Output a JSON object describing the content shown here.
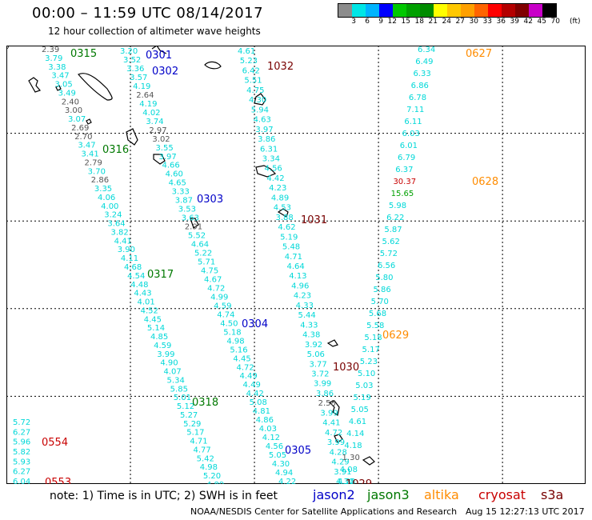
{
  "header": {
    "title": "00:00 – 11:59 UTC 08/14/2017",
    "subtitle": "12 hour collection of altimeter wave heights"
  },
  "colorbar": {
    "unit": "(ft)",
    "labels": [
      "3",
      "6",
      "9",
      "12",
      "15",
      "18",
      "21",
      "24",
      "27",
      "30",
      "33",
      "36",
      "39",
      "42",
      "45",
      "70"
    ],
    "colors": [
      "#8c8c8c",
      "#00e6e6",
      "#00b4ff",
      "#0000ff",
      "#00c800",
      "#00a000",
      "#008c00",
      "#ffff00",
      "#ffc800",
      "#ffa000",
      "#ff6400",
      "#ff0000",
      "#b40000",
      "#800000",
      "#c800c8",
      "#000000"
    ]
  },
  "map": {
    "y_ticks": [
      "10",
      "8",
      "6",
      "4",
      "2",
      "0"
    ],
    "x_ticks": [
      "165",
      "168",
      "171",
      "174",
      "177"
    ],
    "track_colors": {
      "jason2": "#0000c8",
      "jason3": "#007800",
      "altika": "#ff8c00",
      "cryosat": "#c80000",
      "s3a": "#780000"
    },
    "track_labels": [
      {
        "text": "0315",
        "mission": "jason3"
      },
      {
        "text": "0301",
        "mission": "jason2"
      },
      {
        "text": "0302",
        "mission": "jason2"
      },
      {
        "text": "1032",
        "mission": "s3a"
      },
      {
        "text": "0627",
        "mission": "altika"
      },
      {
        "text": "0316",
        "mission": "jason3"
      },
      {
        "text": "0628",
        "mission": "altika"
      },
      {
        "text": "0303",
        "mission": "jason2"
      },
      {
        "text": "1031",
        "mission": "s3a"
      },
      {
        "text": "0317",
        "mission": "jason3"
      },
      {
        "text": "0304",
        "mission": "jason2"
      },
      {
        "text": "0629",
        "mission": "altika"
      },
      {
        "text": "1030",
        "mission": "s3a"
      },
      {
        "text": "0318",
        "mission": "jason3"
      },
      {
        "text": "0305",
        "mission": "jason2"
      },
      {
        "text": "0554",
        "mission": "cryosat"
      },
      {
        "text": "1029",
        "mission": "s3a"
      },
      {
        "text": "0553",
        "mission": "cryosat"
      }
    ],
    "tracks": [
      {
        "id": "track-a",
        "values": [
          "2.39",
          "3.79",
          "3.38",
          "3.47",
          "3.05",
          "3.49",
          "2.40",
          "3.00",
          "3.07",
          "2.69",
          "2.70",
          "3.47",
          "3.41",
          "2.79",
          "3.70",
          "2.86",
          "3.35",
          "4.06",
          "4.00",
          "3.24",
          "3.64",
          "3.82",
          "4.41",
          "3.90",
          "4.11",
          "4.68",
          "4.54",
          "4.48",
          "4.43",
          "4.01",
          "4.52",
          "4.45",
          "5.14",
          "4.85",
          "4.59",
          "3.99",
          "4.90",
          "4.07",
          "5.34",
          "5.85",
          "5.01",
          "5.12",
          "5.27",
          "5.29",
          "5.17",
          "4.71",
          "4.77",
          "5.42",
          "4.98",
          "5.20",
          "4.89"
        ]
      },
      {
        "id": "track-b",
        "values": [
          "3.20",
          "3.52",
          "3.36",
          "3.57",
          "4.19",
          "2.64",
          "4.19",
          "4.02",
          "3.74",
          "2.97",
          "3.02",
          "3.55",
          "3.97",
          "4.66",
          "4.60",
          "4.65",
          "3.33",
          "3.87",
          "3.53",
          "3.63",
          "2.91",
          "5.52",
          "4.64",
          "5.22",
          "5.71",
          "4.75",
          "4.67",
          "4.72",
          "4.99",
          "4.59",
          "4.74",
          "4.50",
          "5.18",
          "4.98",
          "5.16",
          "4.45",
          "4.72",
          "4.49",
          "4.49",
          "4.42",
          "5.08",
          "4.81",
          "4.86",
          "4.03",
          "4.12",
          "4.56",
          "5.05",
          "4.30",
          "4.94",
          "4.22"
        ]
      },
      {
        "id": "track-c",
        "values": [
          "4.61",
          "5.23",
          "6.42",
          "5.51",
          "4.75",
          "4.30",
          "5.94",
          "4.63",
          "3.97",
          "3.86",
          "6.31",
          "3.34",
          "4.56",
          "4.42",
          "4.23",
          "4.89",
          "4.53",
          "3.88",
          "4.62",
          "5.19",
          "5.48",
          "4.71",
          "4.64",
          "4.13",
          "4.96",
          "4.23",
          "4.33",
          "5.44",
          "4.33",
          "4.38",
          "3.92",
          "5.06",
          "3.77",
          "3.72",
          "3.99",
          "3.86",
          "2.58",
          "3.99",
          "4.41",
          "4.72",
          "3.99",
          "4.28",
          "4.29",
          "3.91",
          "4.30"
        ]
      },
      {
        "id": "track-d",
        "values": [
          "6.34",
          "6.49",
          "6.33",
          "6.86",
          "6.78",
          "7.11",
          "6.11",
          "6.03",
          "6.01",
          "6.79",
          "6.37",
          "30.37",
          "15.65",
          "5.98",
          "6.22",
          "5.87",
          "5.62",
          "5.72",
          "6.56",
          "5.80",
          "5.86",
          "5.70",
          "5.68",
          "5.58",
          "5.18",
          "5.17",
          "5.23",
          "5.10",
          "5.03",
          "5.19",
          "5.05",
          "4.61",
          "4.14",
          "4.18",
          "1.30",
          "4.08",
          "4.28"
        ]
      },
      {
        "id": "track-e",
        "values": [
          "5.72",
          "6.27",
          "5.96",
          "5.82",
          "5.93",
          "6.27",
          "6.04"
        ]
      }
    ]
  },
  "footer": {
    "note": "note:  1) Time is in UTC;  2) SWH is in feet",
    "missions": [
      {
        "id": "jason2",
        "label": "jason2"
      },
      {
        "id": "jason3",
        "label": "jason3"
      },
      {
        "id": "altika",
        "label": "altika"
      },
      {
        "id": "cryosat",
        "label": "cryosat"
      },
      {
        "id": "s3a",
        "label": "s3a"
      }
    ],
    "credit": "NOAA/NESDIS Center for Satellite Applications and Research",
    "timestamp": "Aug 15 12:27:13 UTC 2017"
  }
}
